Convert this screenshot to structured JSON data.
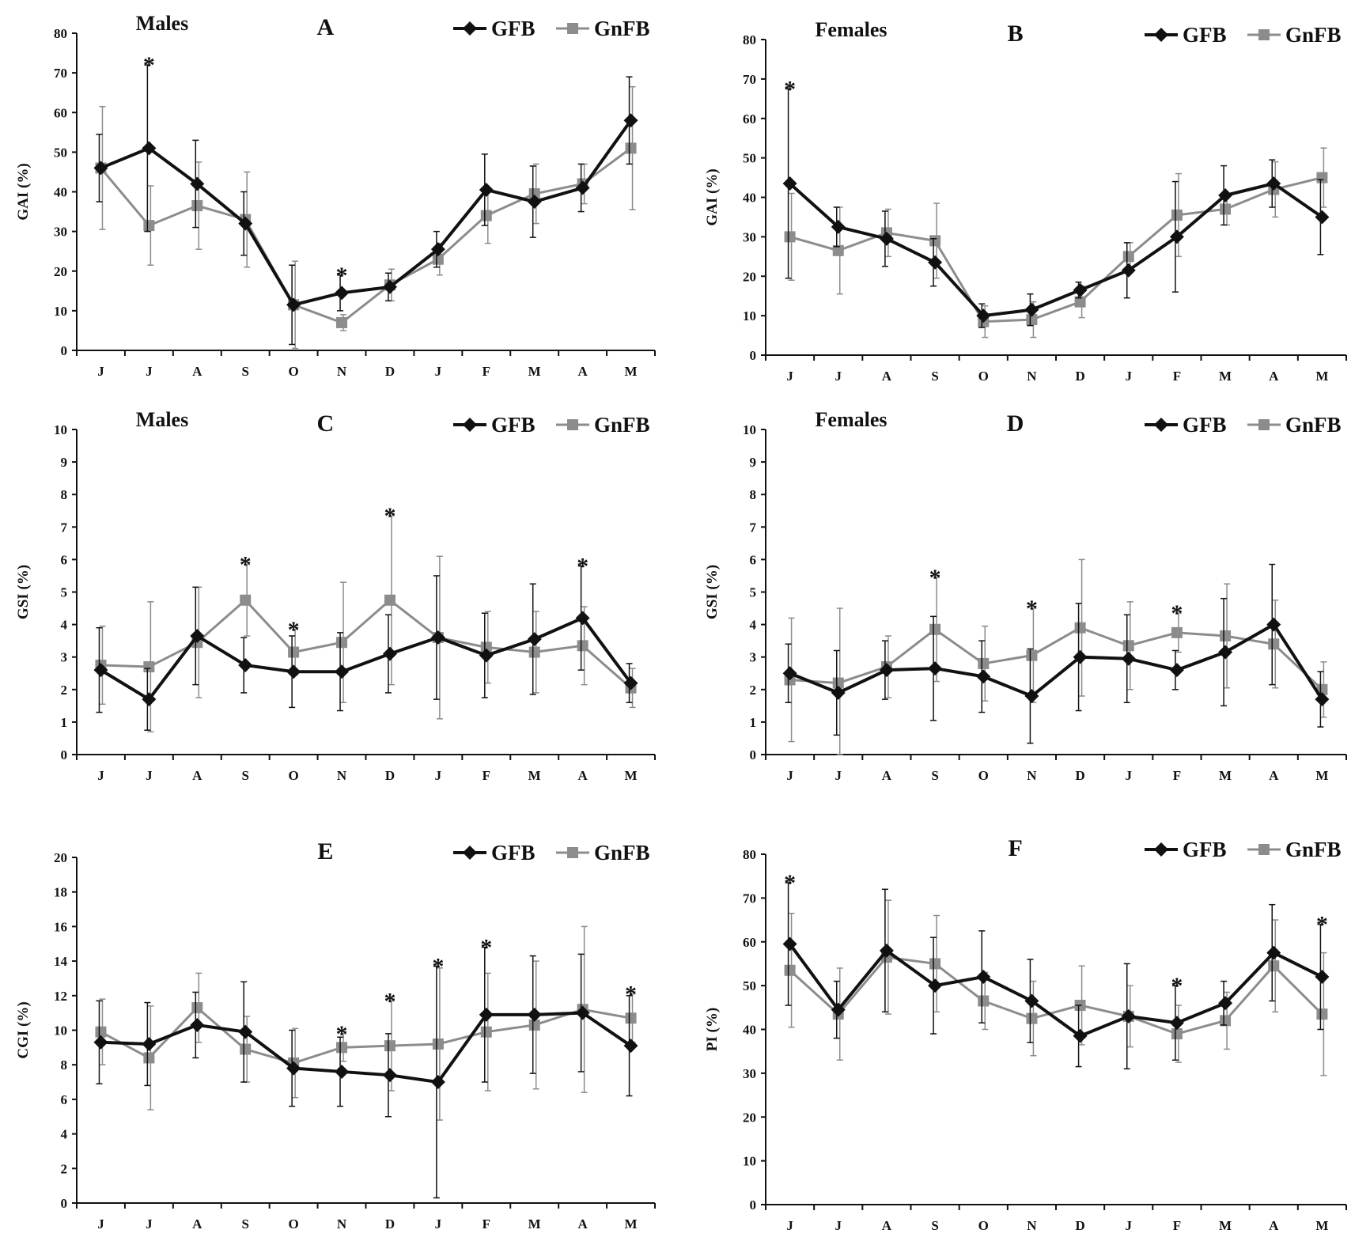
{
  "colors": {
    "GFB": "#111111",
    "GnFB": "#8c8c8c",
    "axis": "#111111"
  },
  "chart_data": [
    {
      "panel": "A",
      "type": "line",
      "subtitle": "Males",
      "ylabel": "GAI (%)",
      "ylim": [
        0,
        80
      ],
      "ystep": 10,
      "categories": [
        "J",
        "J",
        "A",
        "S",
        "O",
        "N",
        "D",
        "J",
        "F",
        "M",
        "A",
        "M"
      ],
      "legend": "top-right",
      "series": [
        {
          "name": "GFB",
          "marker": "diamond",
          "values": [
            46,
            51,
            42,
            32,
            11.5,
            14.5,
            16,
            25.5,
            40.5,
            37.5,
            41,
            58
          ],
          "error": [
            8.5,
            21,
            11,
            8,
            10,
            4.5,
            3.5,
            4.5,
            9,
            9,
            6,
            11
          ]
        },
        {
          "name": "GnFB",
          "marker": "square",
          "values": [
            46,
            31.5,
            36.5,
            33,
            11.5,
            7,
            16.5,
            23,
            34,
            39.5,
            42,
            51
          ],
          "error": [
            15.5,
            10,
            11,
            12,
            11,
            2,
            4,
            4,
            7,
            7.5,
            5,
            15.5
          ]
        }
      ],
      "significant": [
        1,
        5
      ]
    },
    {
      "panel": "B",
      "type": "line",
      "subtitle": "Females",
      "ylabel": "GAI (%)",
      "ylim": [
        0,
        80
      ],
      "ystep": 10,
      "categories": [
        "J",
        "J",
        "A",
        "S",
        "O",
        "N",
        "D",
        "J",
        "F",
        "M",
        "A",
        "M"
      ],
      "legend": "top-right",
      "series": [
        {
          "name": "GFB",
          "marker": "diamond",
          "values": [
            43.5,
            32.5,
            29.5,
            23.5,
            10,
            11.5,
            16.5,
            21.5,
            30,
            40.5,
            43.5,
            35
          ],
          "error": [
            24,
            5,
            7,
            6,
            3,
            4,
            2,
            7,
            14,
            7.5,
            6,
            9.5
          ]
        },
        {
          "name": "GnFB",
          "marker": "square",
          "values": [
            30,
            26.5,
            31,
            29,
            8.5,
            9,
            13.5,
            25,
            35.5,
            37,
            42,
            45
          ],
          "error": [
            11,
            11,
            6,
            9.5,
            4,
            4.5,
            4,
            3.5,
            10.5,
            4,
            7,
            7.5
          ]
        }
      ],
      "significant": [
        0
      ]
    },
    {
      "panel": "C",
      "type": "line",
      "subtitle": "Males",
      "ylabel": "GSI (%)",
      "ylim": [
        0,
        10
      ],
      "ystep": 1,
      "categories": [
        "J",
        "J",
        "A",
        "S",
        "O",
        "N",
        "D",
        "J",
        "F",
        "M",
        "A",
        "M"
      ],
      "legend": "top-right",
      "series": [
        {
          "name": "GFB",
          "marker": "diamond",
          "values": [
            2.6,
            1.7,
            3.65,
            2.75,
            2.55,
            2.55,
            3.1,
            3.6,
            3.05,
            3.55,
            4.2,
            2.2
          ],
          "error": [
            1.3,
            0.95,
            1.5,
            0.85,
            1.1,
            1.2,
            1.2,
            1.9,
            1.3,
            1.7,
            1.6,
            0.6
          ]
        },
        {
          "name": "GnFB",
          "marker": "square",
          "values": [
            2.75,
            2.7,
            3.45,
            4.75,
            3.15,
            3.45,
            4.75,
            3.6,
            3.3,
            3.15,
            3.35,
            2.05
          ],
          "error": [
            1.2,
            2.0,
            1.7,
            1.1,
            0.7,
            1.85,
            2.6,
            2.5,
            1.1,
            1.25,
            1.2,
            0.6
          ]
        }
      ],
      "significant": [
        3,
        4,
        6,
        10
      ]
    },
    {
      "panel": "D",
      "type": "line",
      "subtitle": "Females",
      "ylabel": "GSI (%)",
      "ylim": [
        0,
        10
      ],
      "ystep": 1,
      "categories": [
        "J",
        "J",
        "A",
        "S",
        "O",
        "N",
        "D",
        "J",
        "F",
        "M",
        "A",
        "M"
      ],
      "legend": "top-right",
      "series": [
        {
          "name": "GFB",
          "marker": "diamond",
          "values": [
            2.5,
            1.9,
            2.6,
            2.65,
            2.4,
            1.8,
            3.0,
            2.95,
            2.6,
            3.15,
            4.0,
            1.7
          ],
          "error": [
            0.9,
            1.3,
            0.9,
            1.6,
            1.1,
            1.45,
            1.65,
            1.35,
            0.6,
            1.65,
            1.85,
            0.85
          ]
        },
        {
          "name": "GnFB",
          "marker": "square",
          "values": [
            2.3,
            2.2,
            2.7,
            3.85,
            2.8,
            3.05,
            3.9,
            3.35,
            3.75,
            3.65,
            3.4,
            2.0
          ],
          "error": [
            1.9,
            2.3,
            0.95,
            1.6,
            1.15,
            1.45,
            2.1,
            1.35,
            0.6,
            1.6,
            1.35,
            0.85
          ]
        }
      ],
      "significant": [
        3,
        5,
        8
      ]
    },
    {
      "panel": "E",
      "type": "line",
      "subtitle": "",
      "ylabel": "CGI (%)",
      "ylim": [
        0,
        20
      ],
      "ystep": 2,
      "categories": [
        "J",
        "J",
        "A",
        "S",
        "O",
        "N",
        "D",
        "J",
        "F",
        "M",
        "A",
        "M"
      ],
      "legend": "top-right",
      "series": [
        {
          "name": "GFB",
          "marker": "diamond",
          "values": [
            9.3,
            9.2,
            10.3,
            9.9,
            7.8,
            7.6,
            7.4,
            7.0,
            10.9,
            10.9,
            11.0,
            9.1
          ],
          "error": [
            2.4,
            2.4,
            1.9,
            2.9,
            2.2,
            2.0,
            2.4,
            6.7,
            3.9,
            3.4,
            3.4,
            2.9
          ]
        },
        {
          "name": "GnFB",
          "marker": "square",
          "values": [
            9.9,
            8.4,
            11.3,
            8.9,
            8.1,
            9.0,
            9.1,
            9.2,
            9.9,
            10.3,
            11.2,
            10.7
          ],
          "error": [
            1.9,
            3.0,
            2.0,
            1.9,
            2.0,
            0.8,
            2.6,
            4.4,
            3.4,
            3.7,
            4.8,
            1.4
          ]
        }
      ],
      "significant": [
        5,
        6,
        7,
        8,
        11
      ]
    },
    {
      "panel": "F",
      "type": "line",
      "subtitle": "",
      "ylabel": "PI (%)",
      "ylim": [
        0,
        80
      ],
      "ystep": 10,
      "categories": [
        "J",
        "J",
        "A",
        "S",
        "O",
        "N",
        "D",
        "J",
        "F",
        "M",
        "A",
        "M"
      ],
      "legend": "top-right",
      "series": [
        {
          "name": "GFB",
          "marker": "diamond",
          "values": [
            59.5,
            44.5,
            58,
            50,
            52,
            46.5,
            38.5,
            43,
            41.5,
            46,
            57.5,
            52
          ],
          "error": [
            14,
            6.5,
            14,
            11,
            10.5,
            9.5,
            7,
            12,
            8.5,
            5,
            11,
            12
          ]
        },
        {
          "name": "GnFB",
          "marker": "square",
          "values": [
            53.5,
            43.5,
            56.5,
            55,
            46.5,
            42.5,
            45.5,
            43,
            39,
            42,
            54.5,
            43.5
          ],
          "error": [
            13,
            10.5,
            13,
            11,
            6.5,
            8.5,
            9,
            7,
            6.5,
            6.5,
            10.5,
            14
          ]
        }
      ],
      "significant": [
        0,
        8,
        11
      ]
    }
  ]
}
